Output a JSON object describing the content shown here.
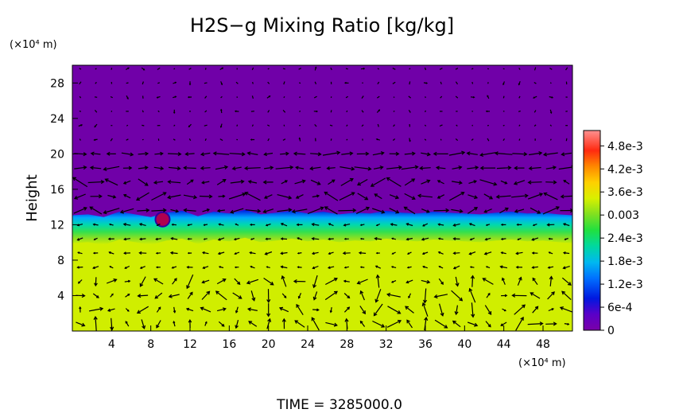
{
  "chart_data": {
    "type": "heatmap",
    "title": "H2S−g Mixing Ratio [kg/kg]",
    "ylabel": "Height",
    "x_unit_label": "(×10⁴ m)",
    "y_unit_label": "(×10⁴ m)",
    "time_label": "TIME = 3285000.0",
    "xlim": [
      0,
      51
    ],
    "ylim": [
      0,
      30
    ],
    "x_ticks": [
      4,
      8,
      12,
      16,
      20,
      24,
      28,
      32,
      36,
      40,
      44,
      48
    ],
    "y_ticks": [
      4,
      8,
      12,
      16,
      20,
      24,
      28
    ],
    "colorbar": {
      "range": [
        0,
        0.0052
      ],
      "tick_values": [
        0,
        0.0006,
        0.0012,
        0.0018,
        0.0024,
        0.003,
        0.0036,
        0.0042,
        0.0048
      ],
      "tick_labels": [
        "0",
        "6e-4",
        "1.2e-3",
        "1.8e-3",
        "2.4e-3",
        "0.003",
        "3.6e-3",
        "4.2e-3",
        "4.8e-3"
      ]
    },
    "field": {
      "lower_layer_value": 0.0039,
      "upper_layer_value": 0.0,
      "interface_height": [
        12.8,
        12.9,
        12.6,
        13.2,
        12.9,
        12.6,
        13.1,
        13.3,
        12.7,
        13.2,
        13.0,
        13.4,
        12.9,
        13.1,
        13.3,
        13.0,
        13.2,
        12.9,
        13.1,
        13.0,
        13.3,
        13.1,
        13.0,
        13.2,
        13.1,
        13.0,
        12.9,
        13.1,
        13.2,
        13.0,
        13.1,
        12.9,
        12.8
      ],
      "interface_x_step": 1.6
    },
    "vectors": "wind-vector field overlay"
  }
}
